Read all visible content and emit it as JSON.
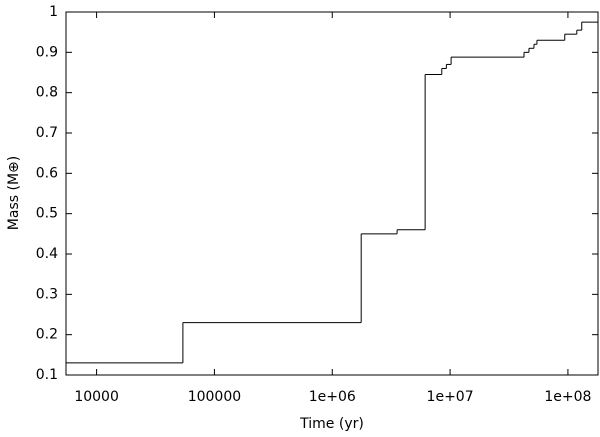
{
  "chart_data": {
    "type": "line",
    "drawstyle": "steps-post",
    "color": "#000000",
    "x_label": "Time (yr)",
    "y_label": "Mass (M⊕)",
    "xscale": "log",
    "x": [
      5500,
      54000,
      1760000,
      3550000,
      6140000,
      8500000,
      9300000,
      10200000,
      42400000,
      46700000,
      51500000,
      54600000,
      94000000,
      119000000,
      131000000
    ],
    "values": [
      0.13,
      0.23,
      0.45,
      0.46,
      0.845,
      0.86,
      0.87,
      0.888,
      0.9,
      0.91,
      0.92,
      0.93,
      0.945,
      0.955,
      0.975
    ],
    "xlim": [
      5500,
      180000000
    ],
    "ylim": [
      0.1,
      1
    ],
    "xticks": [
      10000,
      100000,
      {
        "value": 1000000,
        "label": "1e+06"
      },
      {
        "value": 10000000,
        "label": "1e+07"
      },
      {
        "value": 100000000,
        "label": "1e+08"
      }
    ],
    "yticks": [
      0.1,
      0.2,
      0.3,
      0.4,
      0.5,
      0.6,
      0.7,
      0.8,
      0.9,
      1
    ]
  }
}
